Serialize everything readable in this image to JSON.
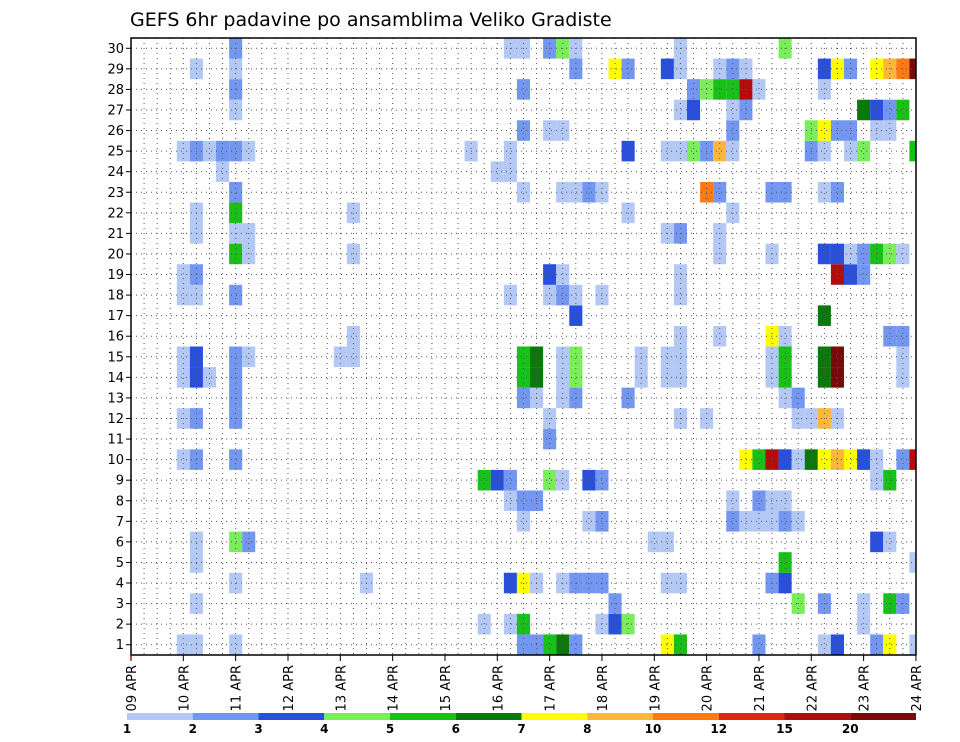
{
  "chart_data": {
    "type": "heatmap",
    "title": "GEFS 6hr padavine po ansamblima Veliko Gradiste",
    "xlabel": "",
    "ylabel": "",
    "x_ticks": [
      "09 APR",
      "10 APR",
      "11 APR",
      "12 APR",
      "13 APR",
      "14 APR",
      "15 APR",
      "16 APR",
      "17 APR",
      "18 APR",
      "19 APR",
      "20 APR",
      "21 APR",
      "22 APR",
      "23 APR",
      "24 APR"
    ],
    "y_ticks": [
      1,
      2,
      3,
      4,
      5,
      6,
      7,
      8,
      9,
      10,
      11,
      12,
      13,
      14,
      15,
      16,
      17,
      18,
      19,
      20,
      21,
      22,
      23,
      24,
      25,
      26,
      27,
      28,
      29,
      30
    ],
    "steps_per_day": 4,
    "grid": true,
    "legend_position": "bottom",
    "colorbar": {
      "labels": [
        "1",
        "2",
        "3",
        "4",
        "5",
        "6",
        "7",
        "8",
        "10",
        "12",
        "15",
        "20"
      ],
      "colors": [
        "#b4c8f5",
        "#7396f0",
        "#2850dc",
        "#7aee5a",
        "#18c018",
        "#0a780a",
        "#ffff00",
        "#f9b73c",
        "#fc7a14",
        "#e32410",
        "#b40c0c",
        "#780a0a"
      ]
    },
    "cells": [
      [
        4,
        1,
        1
      ],
      [
        5,
        1,
        1
      ],
      [
        8,
        1,
        1
      ],
      [
        30,
        1,
        2
      ],
      [
        31,
        1,
        2
      ],
      [
        32,
        1,
        5
      ],
      [
        33,
        1,
        6
      ],
      [
        34,
        1,
        2
      ],
      [
        41,
        1,
        7
      ],
      [
        42,
        1,
        5
      ],
      [
        48,
        1,
        2
      ],
      [
        53,
        1,
        1
      ],
      [
        54,
        1,
        3
      ],
      [
        57,
        1,
        2
      ],
      [
        58,
        1,
        7
      ],
      [
        60,
        1,
        1
      ],
      [
        27,
        2,
        1
      ],
      [
        29,
        2,
        1
      ],
      [
        30,
        2,
        5
      ],
      [
        36,
        2,
        1
      ],
      [
        37,
        2,
        3
      ],
      [
        38,
        2,
        4
      ],
      [
        56,
        2,
        1
      ],
      [
        5,
        3,
        1
      ],
      [
        37,
        3,
        2
      ],
      [
        51,
        3,
        4
      ],
      [
        53,
        3,
        2
      ],
      [
        56,
        3,
        1
      ],
      [
        58,
        3,
        5
      ],
      [
        59,
        3,
        2
      ],
      [
        8,
        4,
        1
      ],
      [
        18,
        4,
        1
      ],
      [
        29,
        4,
        3
      ],
      [
        30,
        4,
        7
      ],
      [
        31,
        4,
        1
      ],
      [
        33,
        4,
        1
      ],
      [
        34,
        4,
        2
      ],
      [
        35,
        4,
        2
      ],
      [
        36,
        4,
        2
      ],
      [
        41,
        4,
        1
      ],
      [
        42,
        4,
        1
      ],
      [
        49,
        4,
        2
      ],
      [
        50,
        4,
        3
      ],
      [
        5,
        5,
        1
      ],
      [
        50,
        5,
        5
      ],
      [
        60,
        5,
        1
      ],
      [
        5,
        6,
        1
      ],
      [
        8,
        6,
        4
      ],
      [
        9,
        6,
        2
      ],
      [
        40,
        6,
        1
      ],
      [
        41,
        6,
        1
      ],
      [
        57,
        6,
        3
      ],
      [
        58,
        6,
        1
      ],
      [
        30,
        7,
        1
      ],
      [
        35,
        7,
        1
      ],
      [
        36,
        7,
        2
      ],
      [
        46,
        7,
        2
      ],
      [
        47,
        7,
        1
      ],
      [
        48,
        7,
        1
      ],
      [
        49,
        7,
        1
      ],
      [
        50,
        7,
        2
      ],
      [
        51,
        7,
        1
      ],
      [
        29,
        8,
        1
      ],
      [
        30,
        8,
        2
      ],
      [
        31,
        8,
        2
      ],
      [
        46,
        8,
        1
      ],
      [
        48,
        8,
        2
      ],
      [
        49,
        8,
        1
      ],
      [
        50,
        8,
        1
      ],
      [
        27,
        9,
        5
      ],
      [
        28,
        9,
        3
      ],
      [
        29,
        9,
        2
      ],
      [
        32,
        9,
        4
      ],
      [
        33,
        9,
        1
      ],
      [
        35,
        9,
        3
      ],
      [
        36,
        9,
        2
      ],
      [
        57,
        9,
        1
      ],
      [
        58,
        9,
        5
      ],
      [
        4,
        10,
        1
      ],
      [
        5,
        10,
        2
      ],
      [
        8,
        10,
        2
      ],
      [
        47,
        10,
        7
      ],
      [
        48,
        10,
        5
      ],
      [
        49,
        10,
        11
      ],
      [
        50,
        10,
        3
      ],
      [
        51,
        10,
        1
      ],
      [
        52,
        10,
        6
      ],
      [
        53,
        10,
        7
      ],
      [
        54,
        10,
        8
      ],
      [
        55,
        10,
        7
      ],
      [
        56,
        10,
        3
      ],
      [
        57,
        10,
        1
      ],
      [
        59,
        10,
        2
      ],
      [
        60,
        10,
        11
      ],
      [
        32,
        11,
        2
      ],
      [
        4,
        12,
        1
      ],
      [
        5,
        12,
        2
      ],
      [
        8,
        12,
        2
      ],
      [
        32,
        12,
        1
      ],
      [
        42,
        12,
        1
      ],
      [
        44,
        12,
        1
      ],
      [
        51,
        12,
        1
      ],
      [
        52,
        12,
        1
      ],
      [
        53,
        12,
        8
      ],
      [
        54,
        12,
        1
      ],
      [
        8,
        13,
        2
      ],
      [
        30,
        13,
        2
      ],
      [
        31,
        13,
        1
      ],
      [
        33,
        13,
        1
      ],
      [
        34,
        13,
        2
      ],
      [
        38,
        13,
        2
      ],
      [
        50,
        13,
        1
      ],
      [
        51,
        13,
        2
      ],
      [
        4,
        14,
        1
      ],
      [
        5,
        14,
        3
      ],
      [
        6,
        14,
        1
      ],
      [
        8,
        14,
        2
      ],
      [
        30,
        14,
        5
      ],
      [
        31,
        14,
        6
      ],
      [
        33,
        14,
        1
      ],
      [
        34,
        14,
        4
      ],
      [
        39,
        14,
        1
      ],
      [
        41,
        14,
        1
      ],
      [
        42,
        14,
        1
      ],
      [
        49,
        14,
        1
      ],
      [
        50,
        14,
        5
      ],
      [
        53,
        14,
        6
      ],
      [
        54,
        14,
        12
      ],
      [
        59,
        14,
        1
      ],
      [
        4,
        15,
        1
      ],
      [
        5,
        15,
        3
      ],
      [
        8,
        15,
        2
      ],
      [
        9,
        15,
        1
      ],
      [
        16,
        15,
        1
      ],
      [
        17,
        15,
        1
      ],
      [
        30,
        15,
        5
      ],
      [
        31,
        15,
        6
      ],
      [
        33,
        15,
        1
      ],
      [
        34,
        15,
        4
      ],
      [
        39,
        15,
        1
      ],
      [
        41,
        15,
        1
      ],
      [
        42,
        15,
        1
      ],
      [
        49,
        15,
        1
      ],
      [
        50,
        15,
        5
      ],
      [
        53,
        15,
        6
      ],
      [
        54,
        15,
        12
      ],
      [
        59,
        15,
        1
      ],
      [
        17,
        16,
        1
      ],
      [
        42,
        16,
        1
      ],
      [
        45,
        16,
        1
      ],
      [
        49,
        16,
        7
      ],
      [
        50,
        16,
        1
      ],
      [
        58,
        16,
        2
      ],
      [
        59,
        16,
        2
      ],
      [
        34,
        17,
        3
      ],
      [
        53,
        17,
        6
      ],
      [
        4,
        18,
        1
      ],
      [
        5,
        18,
        1
      ],
      [
        8,
        18,
        2
      ],
      [
        29,
        18,
        1
      ],
      [
        32,
        18,
        1
      ],
      [
        33,
        18,
        2
      ],
      [
        34,
        18,
        1
      ],
      [
        36,
        18,
        1
      ],
      [
        42,
        18,
        1
      ],
      [
        4,
        19,
        1
      ],
      [
        5,
        19,
        2
      ],
      [
        32,
        19,
        3
      ],
      [
        33,
        19,
        1
      ],
      [
        42,
        19,
        1
      ],
      [
        54,
        19,
        11
      ],
      [
        55,
        19,
        3
      ],
      [
        56,
        19,
        2
      ],
      [
        8,
        20,
        5
      ],
      [
        9,
        20,
        1
      ],
      [
        17,
        20,
        1
      ],
      [
        45,
        20,
        1
      ],
      [
        49,
        20,
        1
      ],
      [
        53,
        20,
        3
      ],
      [
        54,
        20,
        3
      ],
      [
        55,
        20,
        1
      ],
      [
        56,
        20,
        2
      ],
      [
        57,
        20,
        5
      ],
      [
        58,
        20,
        4
      ],
      [
        59,
        20,
        1
      ],
      [
        5,
        21,
        1
      ],
      [
        8,
        21,
        1
      ],
      [
        9,
        21,
        1
      ],
      [
        41,
        21,
        1
      ],
      [
        42,
        21,
        2
      ],
      [
        45,
        21,
        1
      ],
      [
        5,
        22,
        1
      ],
      [
        8,
        22,
        5
      ],
      [
        17,
        22,
        1
      ],
      [
        38,
        22,
        1
      ],
      [
        46,
        22,
        1
      ],
      [
        8,
        23,
        2
      ],
      [
        30,
        23,
        1
      ],
      [
        33,
        23,
        1
      ],
      [
        34,
        23,
        1
      ],
      [
        35,
        23,
        2
      ],
      [
        36,
        23,
        1
      ],
      [
        44,
        23,
        9
      ],
      [
        45,
        23,
        2
      ],
      [
        49,
        23,
        2
      ],
      [
        50,
        23,
        2
      ],
      [
        53,
        23,
        1
      ],
      [
        54,
        23,
        2
      ],
      [
        7,
        24,
        1
      ],
      [
        28,
        24,
        1
      ],
      [
        29,
        24,
        1
      ],
      [
        4,
        25,
        1
      ],
      [
        5,
        25,
        2
      ],
      [
        6,
        25,
        1
      ],
      [
        7,
        25,
        2
      ],
      [
        8,
        25,
        2
      ],
      [
        9,
        25,
        1
      ],
      [
        26,
        25,
        1
      ],
      [
        29,
        25,
        1
      ],
      [
        38,
        25,
        3
      ],
      [
        41,
        25,
        1
      ],
      [
        42,
        25,
        1
      ],
      [
        43,
        25,
        4
      ],
      [
        44,
        25,
        2
      ],
      [
        45,
        25,
        8
      ],
      [
        46,
        25,
        1
      ],
      [
        52,
        25,
        2
      ],
      [
        53,
        25,
        1
      ],
      [
        55,
        25,
        1
      ],
      [
        56,
        25,
        4
      ],
      [
        60,
        25,
        5
      ],
      [
        30,
        26,
        2
      ],
      [
        32,
        26,
        1
      ],
      [
        33,
        26,
        1
      ],
      [
        46,
        26,
        2
      ],
      [
        52,
        26,
        4
      ],
      [
        53,
        26,
        7
      ],
      [
        54,
        26,
        2
      ],
      [
        55,
        26,
        2
      ],
      [
        57,
        26,
        1
      ],
      [
        58,
        26,
        1
      ],
      [
        8,
        27,
        1
      ],
      [
        42,
        27,
        1
      ],
      [
        43,
        27,
        3
      ],
      [
        46,
        27,
        1
      ],
      [
        47,
        27,
        2
      ],
      [
        56,
        27,
        6
      ],
      [
        57,
        27,
        3
      ],
      [
        58,
        27,
        2
      ],
      [
        59,
        27,
        5
      ],
      [
        8,
        28,
        2
      ],
      [
        30,
        28,
        2
      ],
      [
        43,
        28,
        2
      ],
      [
        44,
        28,
        4
      ],
      [
        45,
        28,
        5
      ],
      [
        46,
        28,
        5
      ],
      [
        47,
        28,
        11
      ],
      [
        48,
        28,
        1
      ],
      [
        53,
        28,
        1
      ],
      [
        5,
        29,
        1
      ],
      [
        8,
        29,
        1
      ],
      [
        34,
        29,
        2
      ],
      [
        37,
        29,
        7
      ],
      [
        38,
        29,
        2
      ],
      [
        41,
        29,
        3
      ],
      [
        42,
        29,
        1
      ],
      [
        45,
        29,
        1
      ],
      [
        46,
        29,
        2
      ],
      [
        47,
        29,
        1
      ],
      [
        53,
        29,
        3
      ],
      [
        54,
        29,
        7
      ],
      [
        55,
        29,
        2
      ],
      [
        57,
        29,
        7
      ],
      [
        58,
        29,
        8
      ],
      [
        59,
        29,
        9
      ],
      [
        60,
        29,
        12
      ],
      [
        8,
        30,
        2
      ],
      [
        29,
        30,
        1
      ],
      [
        30,
        30,
        1
      ],
      [
        32,
        30,
        2
      ],
      [
        33,
        30,
        4
      ],
      [
        34,
        30,
        1
      ],
      [
        42,
        30,
        1
      ],
      [
        50,
        30,
        4
      ]
    ]
  }
}
